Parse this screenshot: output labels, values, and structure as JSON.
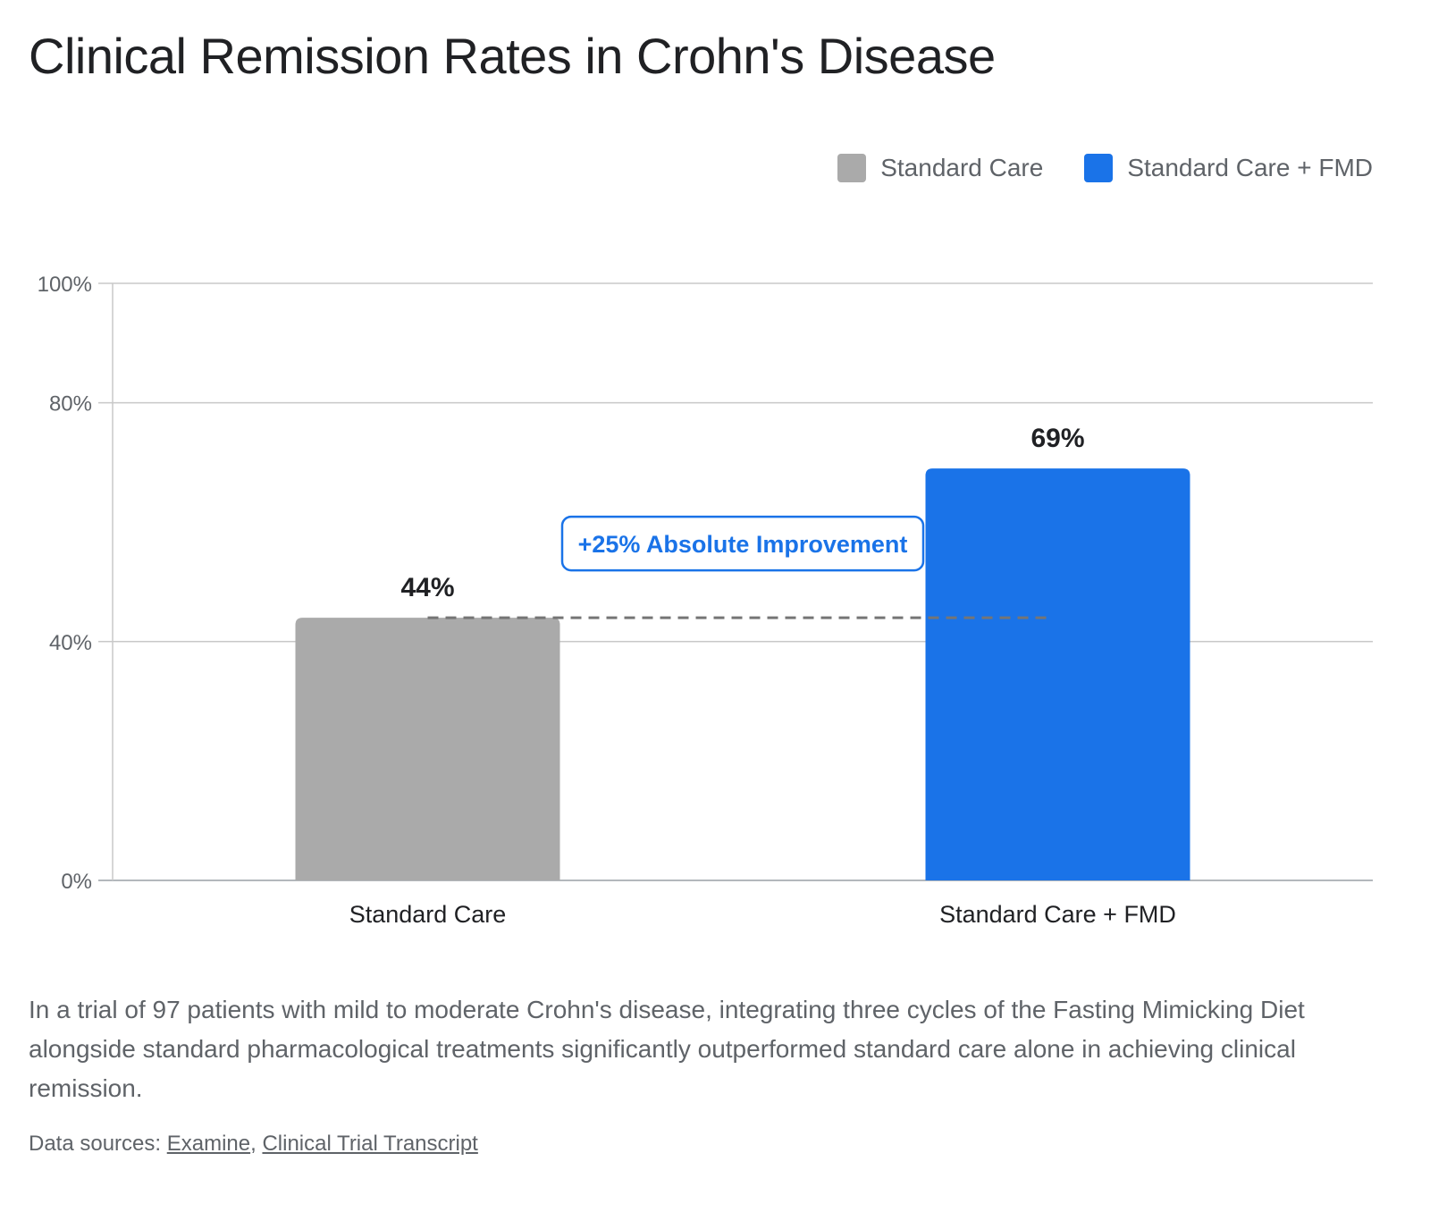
{
  "title": "Clinical Remission Rates in Crohn's Disease",
  "legend": [
    {
      "label": "Standard Care",
      "color": "#aaaaaa"
    },
    {
      "label": "Standard Care + FMD",
      "color": "#1a73e8"
    }
  ],
  "chart_data": {
    "type": "bar",
    "categories": [
      "Standard Care",
      "Standard Care + FMD"
    ],
    "values": [
      44,
      69
    ],
    "value_labels": [
      "44%",
      "69%"
    ],
    "colors": [
      "#aaaaaa",
      "#1a73e8"
    ],
    "ylim": [
      0,
      100
    ],
    "yticks": [
      0,
      40,
      80,
      100
    ],
    "ytick_labels": [
      "0%",
      "40%",
      "80%",
      "100%"
    ],
    "grid": true,
    "annotation": {
      "text": "+25% Absolute Improvement",
      "reference_value": 44
    }
  },
  "description": "In a trial of 97 patients with mild to moderate Crohn's disease, integrating three cycles of the Fasting Mimicking Diet alongside standard pharmacological treatments significantly outperformed standard care alone in achieving clinical remission.",
  "sources": {
    "prefix": "Data sources: ",
    "links": [
      "Examine",
      "Clinical Trial Transcript"
    ],
    "separator": ", "
  }
}
